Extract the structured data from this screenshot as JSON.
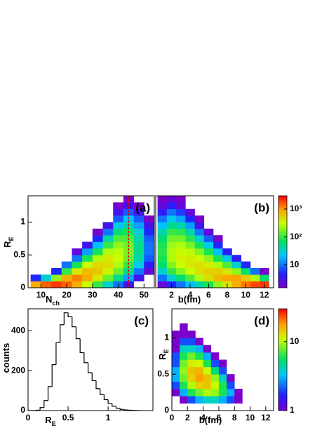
{
  "chart_data": [
    {
      "type": "heatmap",
      "annotation": "(a)",
      "colormap": "rainbow",
      "log_z": true,
      "xlabel": {
        "text": "N",
        "sub": "ch"
      },
      "ylabel": {
        "text": "R",
        "sub": "E"
      },
      "xlim": [
        5,
        54
      ],
      "ylim": [
        0,
        1.4
      ],
      "xticks": [
        10,
        20,
        30,
        40,
        50
      ],
      "yticks": [
        0,
        0.5,
        1
      ],
      "zlim": [
        1.5,
        3000
      ],
      "vline": {
        "x": 44,
        "color": "#cc0000"
      },
      "xbins": [
        6,
        10,
        14,
        18,
        22,
        26,
        30,
        34,
        38,
        42,
        46,
        50,
        54
      ],
      "ybins": [
        0,
        0.1,
        0.2,
        0.3,
        0.4,
        0.5,
        0.6,
        0.7,
        0.8,
        0.9,
        1.0,
        1.1,
        1.2,
        1.3,
        1.4
      ],
      "z": [
        [
          800,
          5,
          0,
          0,
          0,
          0,
          0,
          0,
          0,
          0,
          0,
          0,
          0,
          0
        ],
        [
          1500,
          30,
          0,
          0,
          0,
          0,
          0,
          0,
          0,
          0,
          0,
          0,
          0,
          0
        ],
        [
          2000,
          200,
          5,
          0,
          0,
          0,
          0,
          0,
          0,
          0,
          0,
          0,
          0,
          0
        ],
        [
          1500,
          800,
          100,
          10,
          0,
          0,
          0,
          0,
          0,
          0,
          0,
          0,
          0,
          0
        ],
        [
          800,
          1200,
          400,
          80,
          10,
          2,
          0,
          0,
          0,
          0,
          0,
          0,
          0,
          0
        ],
        [
          300,
          800,
          700,
          300,
          80,
          15,
          3,
          0,
          0,
          0,
          0,
          0,
          0,
          0
        ],
        [
          100,
          400,
          600,
          500,
          250,
          80,
          20,
          5,
          1,
          0,
          0,
          0,
          0,
          0
        ],
        [
          30,
          150,
          350,
          450,
          400,
          250,
          100,
          40,
          10,
          3,
          0,
          0,
          0,
          0
        ],
        [
          10,
          50,
          150,
          250,
          300,
          280,
          200,
          120,
          60,
          25,
          8,
          3,
          1,
          0
        ],
        [
          3,
          15,
          50,
          100,
          150,
          170,
          160,
          120,
          80,
          40,
          20,
          8,
          3,
          1
        ],
        [
          0,
          3,
          10,
          25,
          40,
          50,
          50,
          40,
          30,
          15,
          8,
          3,
          1,
          0
        ],
        [
          0,
          0,
          2,
          4,
          8,
          10,
          10,
          8,
          5,
          3,
          1,
          0,
          0,
          0
        ]
      ]
    },
    {
      "type": "heatmap",
      "annotation": "(b)",
      "colormap": "rainbow",
      "log_z": true,
      "xlabel": {
        "text": "b(fm)"
      },
      "xlim": [
        0.3,
        13
      ],
      "ylim": [
        0,
        1.4
      ],
      "xticks": [
        2,
        4,
        6,
        8,
        10,
        12
      ],
      "zlim": [
        1.5,
        3000
      ],
      "zticks": [
        10,
        {
          "value": 100,
          "label": "10²"
        },
        {
          "value": 1000,
          "label": "10³"
        }
      ],
      "xbins": [
        0.5,
        1.5,
        2.5,
        3.5,
        4.5,
        5.5,
        6.5,
        7.5,
        8.5,
        9.5,
        10.5,
        11.5,
        12.5
      ],
      "ybins": [
        0,
        0.1,
        0.2,
        0.3,
        0.4,
        0.5,
        0.6,
        0.7,
        0.8,
        0.9,
        1.0,
        1.1,
        1.2,
        1.3,
        1.4
      ],
      "z": [
        [
          2,
          10,
          30,
          60,
          80,
          90,
          80,
          60,
          40,
          20,
          10,
          4,
          2,
          1
        ],
        [
          5,
          30,
          100,
          180,
          250,
          260,
          220,
          160,
          100,
          50,
          25,
          10,
          4,
          2
        ],
        [
          10,
          60,
          180,
          300,
          350,
          320,
          250,
          160,
          90,
          40,
          15,
          6,
          2,
          1
        ],
        [
          20,
          120,
          300,
          400,
          380,
          280,
          170,
          90,
          40,
          15,
          5,
          2,
          0,
          0
        ],
        [
          40,
          250,
          450,
          450,
          330,
          180,
          80,
          30,
          10,
          3,
          1,
          0,
          0,
          0
        ],
        [
          80,
          450,
          550,
          380,
          200,
          80,
          25,
          8,
          2,
          0,
          0,
          0,
          0,
          0
        ],
        [
          200,
          700,
          550,
          250,
          80,
          20,
          5,
          1,
          0,
          0,
          0,
          0,
          0,
          0
        ],
        [
          400,
          900,
          400,
          120,
          25,
          4,
          0,
          0,
          0,
          0,
          0,
          0,
          0,
          0
        ],
        [
          800,
          900,
          200,
          30,
          4,
          0,
          0,
          0,
          0,
          0,
          0,
          0,
          0,
          0
        ],
        [
          1300,
          600,
          60,
          5,
          0,
          0,
          0,
          0,
          0,
          0,
          0,
          0,
          0,
          0
        ],
        [
          1800,
          250,
          10,
          0,
          0,
          0,
          0,
          0,
          0,
          0,
          0,
          0,
          0,
          0
        ],
        [
          2000,
          60,
          1,
          0,
          0,
          0,
          0,
          0,
          0,
          0,
          0,
          0,
          0,
          0
        ]
      ]
    },
    {
      "type": "histogram",
      "annotation": "(c)",
      "color": "#000000",
      "xlabel": {
        "text": "R",
        "sub": "E"
      },
      "ylabel": {
        "text": "counts"
      },
      "xlim": [
        0,
        1.56
      ],
      "ylim": [
        0,
        510
      ],
      "xticks": [
        0,
        0.5,
        1
      ],
      "yticks": [
        0,
        200,
        400
      ],
      "bins": [
        0,
        0.05,
        0.1,
        0.15,
        0.2,
        0.25,
        0.3,
        0.35,
        0.4,
        0.45,
        0.5,
        0.55,
        0.6,
        0.65,
        0.7,
        0.75,
        0.8,
        0.85,
        0.9,
        0.95,
        1.0,
        1.05,
        1.1,
        1.15,
        1.2,
        1.25,
        1.3,
        1.35,
        1.4
      ],
      "values": [
        0,
        0,
        2,
        15,
        50,
        120,
        230,
        340,
        430,
        490,
        470,
        420,
        360,
        290,
        240,
        190,
        150,
        110,
        80,
        55,
        35,
        22,
        12,
        6,
        3,
        2,
        1,
        0
      ]
    },
    {
      "type": "heatmap",
      "annotation": "(d)",
      "colormap": "rainbow",
      "log_z": true,
      "xlabel": {
        "text": "b(fm)"
      },
      "ylabel": {
        "text": "R",
        "sub": "E"
      },
      "xlim": [
        0,
        13
      ],
      "ylim": [
        0,
        1.4
      ],
      "xticks": [
        0,
        2,
        4,
        6,
        8,
        10,
        12
      ],
      "yticks": [
        0,
        0.5,
        1
      ],
      "zlim": [
        1,
        30
      ],
      "zticks": [
        1,
        10
      ],
      "xbins": [
        0,
        1,
        2,
        3,
        4,
        5,
        6,
        7,
        8,
        9
      ],
      "ybins": [
        0,
        0.1,
        0.2,
        0.3,
        0.4,
        0.5,
        0.6,
        0.7,
        0.8,
        0.9,
        1.0,
        1.1,
        1.2,
        1.3,
        1.4
      ],
      "z": [
        [
          0,
          0,
          1,
          2,
          3,
          3,
          2,
          2,
          1,
          1,
          1,
          0,
          0,
          0
        ],
        [
          0,
          1,
          3,
          6,
          8,
          9,
          8,
          6,
          4,
          2,
          1,
          1,
          0,
          0
        ],
        [
          0,
          2,
          6,
          10,
          14,
          15,
          12,
          8,
          4,
          2,
          1,
          0,
          0,
          0
        ],
        [
          0,
          3,
          8,
          14,
          18,
          16,
          11,
          6,
          3,
          1,
          0,
          0,
          0,
          0
        ],
        [
          0,
          4,
          10,
          15,
          15,
          11,
          6,
          3,
          1,
          0,
          0,
          0,
          0,
          0
        ],
        [
          0,
          4,
          9,
          11,
          9,
          5,
          2,
          1,
          0,
          0,
          0,
          0,
          0,
          0
        ],
        [
          0,
          3,
          6,
          6,
          4,
          2,
          1,
          0,
          0,
          0,
          0,
          0,
          0,
          0
        ],
        [
          0,
          2,
          3,
          2,
          1,
          0,
          0,
          0,
          0,
          0,
          0,
          0,
          0,
          0
        ],
        [
          0,
          1,
          1,
          0,
          0,
          0,
          0,
          0,
          0,
          0,
          0,
          0,
          0,
          0
        ]
      ]
    }
  ]
}
